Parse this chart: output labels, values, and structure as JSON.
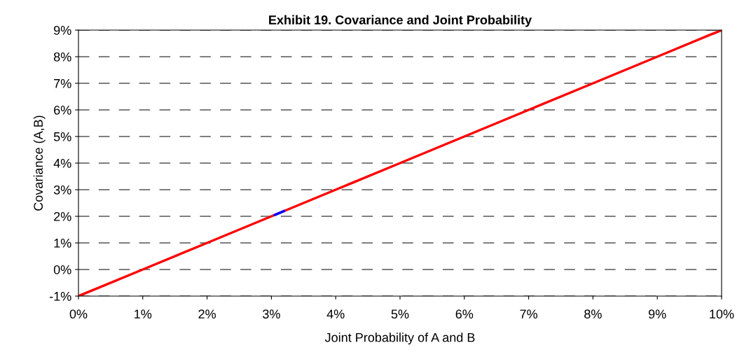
{
  "chart_data": {
    "type": "line",
    "title": "Exhibit 19. Covariance and Joint Probability",
    "xlabel": "Joint Probability of A and B",
    "ylabel": "Covariance (A,B)",
    "series": [
      {
        "color": "#ff0000",
        "x": [
          0,
          1,
          2,
          3,
          4,
          5,
          6,
          7,
          8,
          9,
          10
        ],
        "values": [
          -1,
          0,
          1,
          2,
          3,
          4,
          5,
          6,
          7,
          8,
          9
        ]
      },
      {
        "color": "#0000ff",
        "x": [
          3.05,
          3.2
        ],
        "values": [
          2.05,
          2.2
        ]
      }
    ],
    "xlim": [
      0,
      10
    ],
    "ylim": [
      -1,
      9
    ],
    "xticks": [
      {
        "value": 0,
        "label": "0%"
      },
      {
        "value": 1,
        "label": "1%"
      },
      {
        "value": 2,
        "label": "2%"
      },
      {
        "value": 3,
        "label": "3%"
      },
      {
        "value": 4,
        "label": "4%"
      },
      {
        "value": 5,
        "label": "5%"
      },
      {
        "value": 6,
        "label": "6%"
      },
      {
        "value": 7,
        "label": "7%"
      },
      {
        "value": 8,
        "label": "8%"
      },
      {
        "value": 9,
        "label": "9%"
      },
      {
        "value": 10,
        "label": "10%"
      }
    ],
    "yticks": [
      {
        "value": -1,
        "label": "-1%"
      },
      {
        "value": 0,
        "label": "0%"
      },
      {
        "value": 1,
        "label": "1%"
      },
      {
        "value": 2,
        "label": "2%"
      },
      {
        "value": 3,
        "label": "3%"
      },
      {
        "value": 4,
        "label": "4%"
      },
      {
        "value": 5,
        "label": "5%"
      },
      {
        "value": 6,
        "label": "6%"
      },
      {
        "value": 7,
        "label": "7%"
      },
      {
        "value": 8,
        "label": "8%"
      },
      {
        "value": 9,
        "label": "9%"
      }
    ],
    "grid": "y",
    "legend": false,
    "marker": "none",
    "line_style": "solid"
  }
}
